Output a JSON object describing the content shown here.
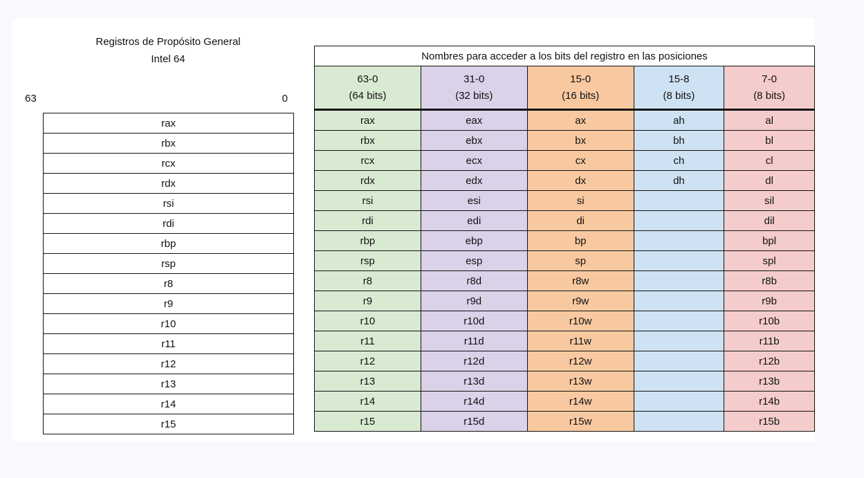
{
  "left": {
    "title_line1": "Registros de Propósito General",
    "title_line2": "Intel 64",
    "bit_high": "63",
    "bit_low": "0",
    "registers": [
      "rax",
      "rbx",
      "rcx",
      "rdx",
      "rsi",
      "rdi",
      "rbp",
      "rsp",
      "r8",
      "r9",
      "r10",
      "r11",
      "r12",
      "r13",
      "r14",
      "r15"
    ]
  },
  "right": {
    "title": "Nombres para acceder a los bits del registro en las posiciones",
    "columns": [
      {
        "range": "63-0",
        "size": "(64 bits)",
        "color": "#d9ead3"
      },
      {
        "range": "31-0",
        "size": "(32 bits)",
        "color": "#d9d2e9"
      },
      {
        "range": "15-0",
        "size": "(16 bits)",
        "color": "#f8c9a0"
      },
      {
        "range": "15-8",
        "size": "(8 bits)",
        "color": "#cfe2f3"
      },
      {
        "range": "7-0",
        "size": "(8 bits)",
        "color": "#f4cccc"
      }
    ],
    "rows": [
      [
        "rax",
        "eax",
        "ax",
        "ah",
        "al"
      ],
      [
        "rbx",
        "ebx",
        "bx",
        "bh",
        "bl"
      ],
      [
        "rcx",
        "ecx",
        "cx",
        "ch",
        "cl"
      ],
      [
        "rdx",
        "edx",
        "dx",
        "dh",
        "dl"
      ],
      [
        "rsi",
        "esi",
        "si",
        "",
        "sil"
      ],
      [
        "rdi",
        "edi",
        "di",
        "",
        "dil"
      ],
      [
        "rbp",
        "ebp",
        "bp",
        "",
        "bpl"
      ],
      [
        "rsp",
        "esp",
        "sp",
        "",
        "spl"
      ],
      [
        "r8",
        "r8d",
        "r8w",
        "",
        "r8b"
      ],
      [
        "r9",
        "r9d",
        "r9w",
        "",
        "r9b"
      ],
      [
        "r10",
        "r10d",
        "r10w",
        "",
        "r10b"
      ],
      [
        "r11",
        "r11d",
        "r11w",
        "",
        "r11b"
      ],
      [
        "r12",
        "r12d",
        "r12w",
        "",
        "r12b"
      ],
      [
        "r13",
        "r13d",
        "r13w",
        "",
        "r13b"
      ],
      [
        "r14",
        "r14d",
        "r14w",
        "",
        "r14b"
      ],
      [
        "r15",
        "r15d",
        "r15w",
        "",
        "r15b"
      ]
    ]
  }
}
